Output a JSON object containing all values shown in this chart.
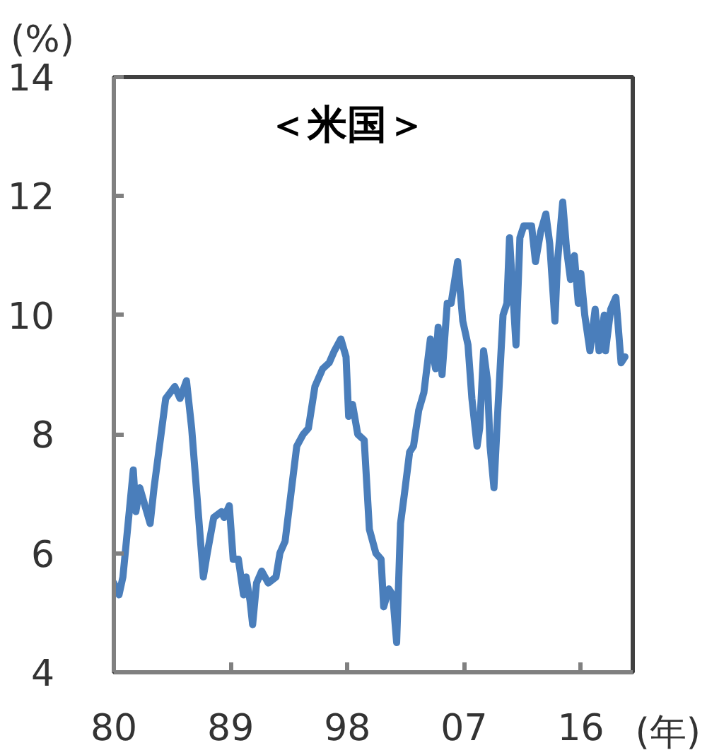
{
  "chart_data": {
    "type": "line",
    "title": "＜米国＞",
    "ylabel": "(%)",
    "xlabel": "(年)",
    "x": [
      1980.0,
      1980.4,
      1980.7,
      1981.5,
      1981.7,
      1982.0,
      1982.4,
      1982.8,
      1983.1,
      1984.0,
      1984.7,
      1985.1,
      1985.6,
      1986.0,
      1986.9,
      1987.2,
      1987.7,
      1988.3,
      1988.5,
      1988.9,
      1989.2,
      1989.6,
      1990.0,
      1990.2,
      1990.5,
      1990.7,
      1991.0,
      1991.4,
      1991.9,
      1992.5,
      1992.8,
      1993.2,
      1994.1,
      1994.6,
      1995.0,
      1995.5,
      1996.1,
      1996.6,
      1997.0,
      1997.5,
      1997.9,
      1998.1,
      1998.4,
      1998.8,
      1999.3,
      1999.7,
      2000.2,
      2000.6,
      2000.8,
      2001.2,
      2001.5,
      2001.8,
      2002.1,
      2002.4,
      2002.8,
      2003.1,
      2003.5,
      2003.9,
      2004.4,
      2004.8,
      2005.0,
      2005.3,
      2005.7,
      2006.0,
      2006.5,
      2006.9,
      2007.3,
      2007.6,
      2008.0,
      2008.2,
      2008.5,
      2008.8,
      2009.0,
      2009.3,
      2009.6,
      2010.0,
      2010.3,
      2010.5,
      2011.0,
      2011.3,
      2011.6,
      2012.2,
      2012.5,
      2012.9,
      2013.3,
      2013.6,
      2014.0,
      2014.2,
      2014.6,
      2014.9,
      2015.2,
      2015.5,
      2015.8,
      2016.0,
      2016.3,
      2016.7,
      2017.1,
      2017.4,
      2017.8,
      2017.9,
      2018.3,
      2018.7,
      2019.1,
      2019.4
    ],
    "series": [
      {
        "color": "#4a7ebb",
        "values": [
          5.5,
          5.3,
          5.6,
          7.4,
          6.7,
          7.1,
          6.8,
          6.5,
          7.1,
          8.6,
          8.8,
          8.6,
          8.9,
          8.1,
          5.6,
          6.0,
          6.6,
          6.7,
          6.6,
          6.8,
          5.9,
          5.9,
          5.3,
          5.6,
          5.2,
          4.8,
          5.5,
          5.7,
          5.5,
          5.6,
          6.0,
          6.2,
          7.8,
          8.0,
          8.1,
          8.8,
          9.1,
          9.2,
          9.4,
          9.6,
          9.3,
          8.3,
          8.5,
          8.0,
          7.9,
          6.4,
          6.0,
          5.9,
          5.1,
          5.4,
          5.3,
          4.5,
          6.5,
          7.0,
          7.7,
          7.8,
          8.4,
          8.7,
          9.6,
          9.1,
          9.8,
          9.0,
          10.2,
          10.2,
          10.9,
          9.9,
          9.5,
          8.6,
          7.8,
          8.1,
          9.4,
          8.9,
          7.8,
          7.1,
          8.4,
          10.0,
          10.2,
          11.3,
          9.5,
          11.3,
          11.5,
          11.5,
          10.9,
          11.4,
          11.7,
          11.2,
          9.9,
          10.9,
          11.9,
          11.1,
          10.6,
          11.0,
          10.2,
          10.7,
          10.0,
          9.4,
          10.1,
          9.4,
          10.0,
          9.4,
          10.1,
          10.3,
          9.2,
          9.3
        ]
      }
    ],
    "xlim": [
      1980,
      2020
    ],
    "ylim": [
      4,
      14
    ],
    "xticks": [
      {
        "value": 1980,
        "label": "80"
      },
      {
        "value": 1989,
        "label": "89"
      },
      {
        "value": 1998,
        "label": "98"
      },
      {
        "value": 2007,
        "label": "07"
      },
      {
        "value": 2016,
        "label": "16"
      }
    ],
    "yticks": [
      4,
      6,
      8,
      10,
      12,
      14
    ],
    "line_style": "solid"
  }
}
